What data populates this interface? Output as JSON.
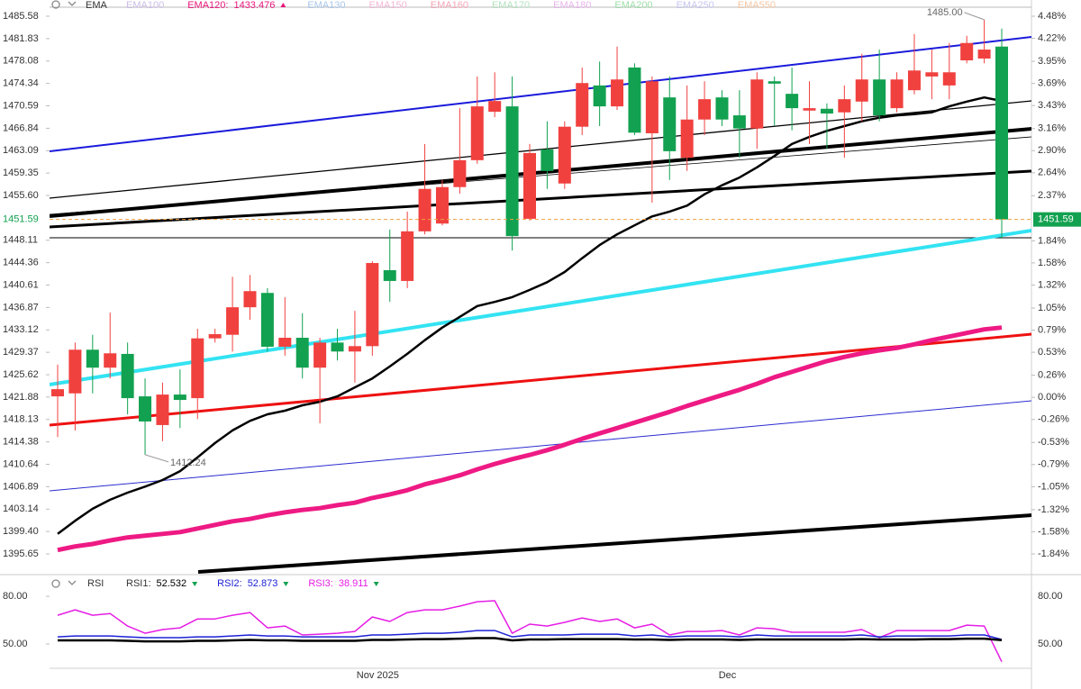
{
  "chart_data": [
    {
      "type": "candlestick",
      "indicator": "EMA",
      "legend_items": [
        {
          "name": "EMA100",
          "color": "#cbbde6"
        },
        {
          "name": "EMA120:",
          "value": 1433.476,
          "color": "#e8157a"
        },
        {
          "name": "EMA130",
          "color": "#a9c6ea"
        },
        {
          "name": "EMA150",
          "color": "#f2b6d6"
        },
        {
          "name": "EMA160",
          "color": "#f3a6b6"
        },
        {
          "name": "EMA170",
          "color": "#b3e2bf"
        },
        {
          "name": "EMA180",
          "color": "#e7b5ea"
        },
        {
          "name": "EMA200",
          "color": "#9edfa8"
        },
        {
          "name": "EMA250",
          "color": "#c6c6f0"
        },
        {
          "name": "EMA550",
          "color": "#f4c7a4"
        }
      ],
      "categories": [
        null,
        null,
        null,
        null,
        null,
        null,
        null,
        null,
        null,
        null,
        null,
        null,
        null,
        null,
        null,
        null,
        null,
        null,
        "Nov 2025",
        null,
        null,
        null,
        null,
        null,
        null,
        null,
        null,
        null,
        null,
        null,
        null,
        null,
        null,
        null,
        null,
        null,
        null,
        null,
        "Dec",
        null,
        null,
        null,
        null,
        null,
        null,
        null,
        null,
        null,
        null,
        null,
        null,
        null,
        null,
        null,
        null
      ],
      "open": [
        1422.0,
        1422.5,
        1429.8,
        1426.8,
        1429.1,
        1422.0,
        1417.2,
        1422.3,
        1421.7,
        1431.7,
        1432.3,
        1436.9,
        1439.3,
        1430.3,
        1431.8,
        1426.8,
        1431.0,
        1429.5,
        1430.4,
        1443.1,
        1441.3,
        1449.6,
        1450.9,
        1457.0,
        1461.5,
        1469.6,
        1470.5,
        1451.7,
        1463.3,
        1457.6,
        1467.1,
        1474.0,
        1470.5,
        1477.0,
        1466.0,
        1472.0,
        1461.9,
        1468.3,
        1472.0,
        1469.0,
        1466.8,
        1474.7,
        1472.6,
        1469.8,
        1470.1,
        1469.5,
        1471.3,
        1475.0,
        1470.2,
        1473.2,
        1475.5,
        1474.0,
        1478.2,
        1478.5,
        1480.5
      ],
      "high": [
        1427.3,
        1431.0,
        1432.3,
        1436.0,
        1431.0,
        1425.0,
        1424.3,
        1426.5,
        1433.3,
        1433.3,
        1442.0,
        1442.3,
        1440.1,
        1438.6,
        1435.9,
        1431.8,
        1433.3,
        1436.3,
        1444.6,
        1449.9,
        1452.9,
        1464.2,
        1458.2,
        1470.2,
        1475.5,
        1476.2,
        1475.5,
        1464.2,
        1468.0,
        1468.0,
        1477.0,
        1478.0,
        1480.5,
        1477.7,
        1475.5,
        1475.5,
        1474.0,
        1474.7,
        1473.2,
        1473.2,
        1476.2,
        1475.5,
        1477.0,
        1474.7,
        1471.0,
        1474.0,
        1479.3,
        1480.0,
        1476.2,
        1482.6,
        1480.0,
        1481.1,
        1482.3,
        1485.0,
        1483.5
      ],
      "low": [
        1415.2,
        1416.3,
        1422.5,
        1425.0,
        1419.0,
        1412.24,
        1414.5,
        1416.7,
        1418.2,
        1431.0,
        1429.5,
        1434.8,
        1429.5,
        1428.8,
        1425.0,
        1417.5,
        1428.0,
        1424.3,
        1428.8,
        1437.8,
        1440.1,
        1449.1,
        1450.6,
        1455.9,
        1460.9,
        1468.7,
        1446.4,
        1451.4,
        1456.7,
        1456.7,
        1465.7,
        1467.2,
        1469.9,
        1465.7,
        1454.4,
        1458.2,
        1459.7,
        1465.7,
        1467.2,
        1461.9,
        1463.4,
        1467.2,
        1466.5,
        1464.2,
        1463.4,
        1461.9,
        1468.0,
        1468.0,
        1469.5,
        1472.5,
        1471.7,
        1471.7,
        1477.7,
        1477.7,
        1448.4
      ],
      "close": [
        1423.2,
        1429.8,
        1426.8,
        1429.2,
        1421.7,
        1417.8,
        1422.3,
        1421.4,
        1431.7,
        1432.4,
        1436.9,
        1439.6,
        1430.3,
        1431.8,
        1426.8,
        1431.0,
        1429.5,
        1430.4,
        1444.3,
        1441.3,
        1449.6,
        1456.7,
        1457.0,
        1461.5,
        1470.5,
        1471.4,
        1448.8,
        1462.7,
        1459.7,
        1467.1,
        1474.4,
        1470.5,
        1475.0,
        1466.1,
        1474.7,
        1463.0,
        1468.3,
        1471.7,
        1468.3,
        1466.8,
        1475.0,
        1474.3,
        1470.2,
        1470.2,
        1469.3,
        1471.7,
        1475.0,
        1469.0,
        1475.0,
        1476.5,
        1476.2,
        1476.2,
        1481.1,
        1480.0,
        1451.59
      ],
      "up_color": "#f0413f",
      "down_color": "#12a150",
      "max_label": "1485.00",
      "min_label": "1412.24",
      "overlays": [
        {
          "color": "#000000",
          "values": [
            1399.0,
            1401.2,
            1403.2,
            1404.7,
            1405.9,
            1406.9,
            1408.0,
            1409.5,
            1411.8,
            1414.2,
            1416.3,
            1417.9,
            1419.0,
            1419.6,
            1420.5,
            1421.1,
            1422.0,
            1423.5,
            1425.0,
            1427.0,
            1429.1,
            1431.4,
            1433.5,
            1435.3,
            1437.1,
            1437.8,
            1438.6,
            1439.8,
            1441.1,
            1442.8,
            1445.1,
            1447.3,
            1449.1,
            1450.6,
            1452.1,
            1452.9,
            1453.9,
            1455.8,
            1457.3,
            1458.6,
            1460.3,
            1462.2,
            1464.2,
            1465.4,
            1466.4,
            1467.2,
            1468.0,
            1468.6,
            1469.0,
            1469.2,
            1469.5,
            1470.5,
            1471.3,
            1472.0,
            1471.4
          ]
        },
        {
          "color": "#ee1a84",
          "values": [
            1396.3,
            1396.9,
            1397.3,
            1397.9,
            1398.4,
            1398.7,
            1399.0,
            1399.3,
            1399.9,
            1400.5,
            1401.1,
            1401.5,
            1402.1,
            1402.6,
            1403.0,
            1403.3,
            1403.8,
            1404.2,
            1405.0,
            1405.6,
            1406.3,
            1407.3,
            1408.0,
            1408.8,
            1409.8,
            1410.7,
            1411.5,
            1412.2,
            1413.0,
            1413.9,
            1414.9,
            1415.8,
            1416.7,
            1417.6,
            1418.5,
            1419.4,
            1420.4,
            1421.3,
            1422.2,
            1423.1,
            1424.1,
            1425.2,
            1426.1,
            1427.0,
            1427.9,
            1428.6,
            1429.2,
            1429.7,
            1430.1,
            1430.7,
            1431.4,
            1432.0,
            1432.6,
            1433.2,
            1433.5
          ]
        }
      ],
      "ylim": [
        1395.65,
        1485.58
      ],
      "yticks": [
        1485.58,
        1481.83,
        1478.08,
        1474.34,
        1470.59,
        1466.84,
        1463.09,
        1459.35,
        {
          "value": 1455.6,
          "label": "1455.60"
        },
        1448.11,
        1444.36,
        1440.61,
        1436.87,
        1433.12,
        1429.37,
        1425.62,
        1421.88,
        1418.13,
        1414.38,
        1410.64,
        1406.89,
        1403.14,
        {
          "value": 1399.4,
          "label": "1399.40"
        },
        1395.65
      ],
      "y2lim": [
        -1.84,
        4.48
      ],
      "y2ticks": [
        {
          "value": 4.48,
          "label": "4.48%"
        },
        {
          "value": 4.22,
          "label": "4.22%"
        },
        {
          "value": 3.95,
          "label": "3.95%"
        },
        {
          "value": 3.69,
          "label": "3.69%"
        },
        {
          "value": 3.43,
          "label": "3.43%"
        },
        {
          "value": 3.16,
          "label": "3.16%"
        },
        {
          "value": 2.9,
          "label": "2.90%"
        },
        {
          "value": 2.64,
          "label": "2.64%"
        },
        {
          "value": 2.37,
          "label": "2.37%"
        },
        {
          "value": 1.84,
          "label": "1.84%"
        },
        {
          "value": 1.58,
          "label": "1.58%"
        },
        {
          "value": 1.32,
          "label": "1.32%"
        },
        {
          "value": 1.05,
          "label": "1.05%"
        },
        {
          "value": 0.79,
          "label": "0.79%"
        },
        {
          "value": 0.53,
          "label": "0.53%"
        },
        {
          "value": 0.26,
          "label": "0.26%"
        },
        {
          "value": 0,
          "label": "0.00%"
        },
        {
          "value": -0.26,
          "label": "-0.26%"
        },
        {
          "value": -0.53,
          "label": "-0.53%"
        },
        {
          "value": -0.79,
          "label": "-0.79%"
        },
        {
          "value": -1.05,
          "label": "-1.05%"
        },
        {
          "value": -1.32,
          "label": "-1.32%"
        },
        {
          "value": -1.58,
          "label": "-1.58%"
        },
        {
          "value": -1.84,
          "label": "-1.84%"
        }
      ]
    },
    {
      "type": "line",
      "title": "RSI",
      "series": [
        {
          "name": "RSI1:",
          "color": "#000000",
          "current": 52.532,
          "values": [
            52.3,
            52.3,
            52.3,
            52.3,
            52.0,
            51.7,
            51.7,
            51.7,
            52.0,
            52.0,
            52.3,
            52.6,
            52.3,
            52.3,
            52.0,
            52.0,
            52.0,
            52.0,
            52.6,
            52.6,
            52.9,
            53.1,
            53.1,
            53.4,
            53.7,
            53.7,
            52.3,
            52.9,
            52.9,
            53.1,
            53.1,
            53.1,
            53.1,
            52.9,
            52.9,
            52.6,
            52.9,
            52.9,
            52.9,
            52.6,
            52.9,
            52.9,
            52.9,
            52.9,
            52.9,
            52.9,
            53.1,
            52.9,
            52.9,
            52.9,
            53.1,
            53.1,
            53.4,
            53.4,
            52.5
          ]
        },
        {
          "name": "RSI2:",
          "color": "#1d22d6",
          "current": 52.873,
          "values": [
            54.5,
            55.1,
            55.1,
            55.1,
            54.5,
            54.0,
            54.0,
            54.0,
            54.5,
            54.5,
            55.1,
            55.7,
            55.1,
            55.1,
            54.5,
            54.5,
            54.5,
            54.5,
            55.7,
            55.7,
            56.2,
            56.8,
            56.8,
            57.4,
            58.5,
            58.5,
            54.5,
            55.7,
            55.7,
            55.7,
            56.2,
            56.2,
            56.2,
            55.1,
            55.7,
            54.5,
            55.1,
            55.1,
            55.1,
            54.5,
            55.7,
            55.1,
            55.1,
            55.1,
            55.1,
            55.1,
            55.7,
            54.5,
            55.1,
            55.1,
            55.1,
            55.1,
            55.7,
            55.7,
            52.9
          ]
        },
        {
          "name": "RSI3:",
          "color": "#e51ee5",
          "current": 38.911,
          "values": [
            68.1,
            71.5,
            68.1,
            69.2,
            61.3,
            56.8,
            59.1,
            60.2,
            65.8,
            65.8,
            68.1,
            69.8,
            60.2,
            61.3,
            55.7,
            56.2,
            56.8,
            57.9,
            67.0,
            64.2,
            69.8,
            71.5,
            71.5,
            73.8,
            76.6,
            77.2,
            56.8,
            62.5,
            61.3,
            63.6,
            66.4,
            64.2,
            65.8,
            60.2,
            62.5,
            55.7,
            57.9,
            57.9,
            58.5,
            55.7,
            60.2,
            59.6,
            57.4,
            57.4,
            57.4,
            57.4,
            59.1,
            54.0,
            58.5,
            58.5,
            58.5,
            58.5,
            61.9,
            61.3,
            38.9
          ]
        }
      ],
      "ylim": [
        35.9,
        84
      ],
      "yticks": [
        {
          "value": 80,
          "label": "80.00"
        },
        {
          "value": 50,
          "label": "50.00"
        }
      ]
    }
  ]
}
